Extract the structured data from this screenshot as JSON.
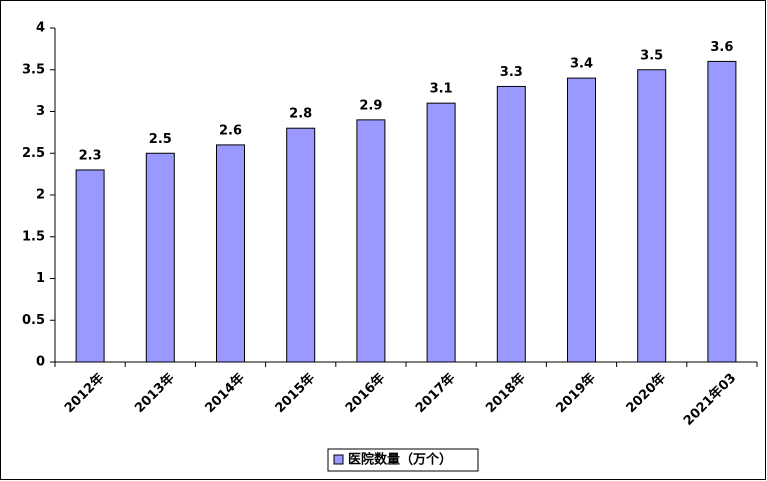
{
  "chart_data": {
    "type": "bar",
    "categories": [
      "2012年",
      "2013年",
      "2014年",
      "2015年",
      "2016年",
      "2017年",
      "2018年",
      "2019年",
      "2020年",
      "2021年03"
    ],
    "series": [
      {
        "name": "医院数量（万个）",
        "color": "#9999ff",
        "values": [
          2.3,
          2.5,
          2.6,
          2.8,
          2.9,
          3.1,
          3.3,
          3.4,
          3.5,
          3.6
        ]
      }
    ],
    "ylim": [
      0,
      4
    ],
    "yticks": [
      0,
      0.5,
      1,
      1.5,
      2,
      2.5,
      3,
      3.5,
      4
    ],
    "legend": "bottom"
  }
}
